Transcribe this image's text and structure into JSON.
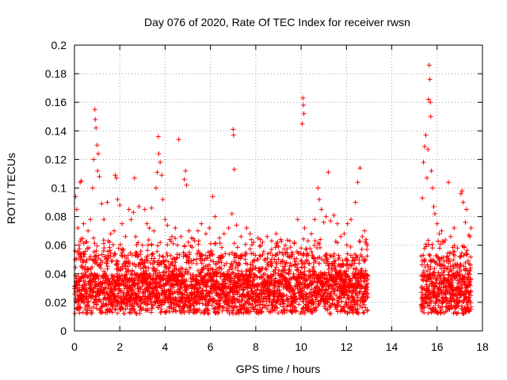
{
  "chart_data": {
    "type": "scatter",
    "title": "Day 076 of 2020, Rate Of TEC Index for receiver rwsn",
    "xlabel": "GPS time / hours",
    "ylabel": "ROTI / TECUs",
    "xlim": [
      0,
      18
    ],
    "ylim": [
      0,
      0.2
    ],
    "xticks": [
      "0",
      "2",
      "4",
      "6",
      "8",
      "10",
      "12",
      "14",
      "16",
      "18"
    ],
    "yticks": [
      "0",
      "0.02",
      "0.04",
      "0.06",
      "0.08",
      "0.1",
      "0.12",
      "0.14",
      "0.16",
      "0.18",
      "0.2"
    ],
    "grid": true,
    "marker": "+",
    "series_color": "#ff0000",
    "points": [
      [
        0.05,
        0.094
      ],
      [
        0.1,
        0.085
      ],
      [
        0.15,
        0.072
      ],
      [
        0.2,
        0.06
      ],
      [
        0.25,
        0.104
      ],
      [
        0.3,
        0.105
      ],
      [
        0.4,
        0.075
      ],
      [
        0.5,
        0.062
      ],
      [
        0.6,
        0.07
      ],
      [
        0.7,
        0.078
      ],
      [
        0.8,
        0.1
      ],
      [
        0.85,
        0.12
      ],
      [
        0.9,
        0.155
      ],
      [
        0.92,
        0.148
      ],
      [
        0.95,
        0.142
      ],
      [
        1.0,
        0.13
      ],
      [
        1.02,
        0.112
      ],
      [
        1.05,
        0.124
      ],
      [
        1.1,
        0.108
      ],
      [
        1.2,
        0.089
      ],
      [
        1.3,
        0.078
      ],
      [
        1.45,
        0.09
      ],
      [
        1.6,
        0.068
      ],
      [
        1.75,
        0.07
      ],
      [
        1.8,
        0.109
      ],
      [
        1.85,
        0.107
      ],
      [
        1.9,
        0.092
      ],
      [
        2.0,
        0.088
      ],
      [
        2.1,
        0.075
      ],
      [
        2.25,
        0.066
      ],
      [
        2.4,
        0.085
      ],
      [
        2.5,
        0.078
      ],
      [
        2.6,
        0.083
      ],
      [
        2.65,
        0.107
      ],
      [
        2.7,
        0.066
      ],
      [
        2.85,
        0.087
      ],
      [
        3.0,
        0.06
      ],
      [
        3.1,
        0.085
      ],
      [
        3.2,
        0.075
      ],
      [
        3.3,
        0.072
      ],
      [
        3.4,
        0.086
      ],
      [
        3.5,
        0.07
      ],
      [
        3.6,
        0.1
      ],
      [
        3.65,
        0.111
      ],
      [
        3.7,
        0.136
      ],
      [
        3.72,
        0.124
      ],
      [
        3.78,
        0.118
      ],
      [
        3.85,
        0.109
      ],
      [
        3.9,
        0.092
      ],
      [
        4.0,
        0.078
      ],
      [
        4.1,
        0.074
      ],
      [
        4.2,
        0.064
      ],
      [
        4.3,
        0.066
      ],
      [
        4.45,
        0.072
      ],
      [
        4.6,
        0.134
      ],
      [
        4.7,
        0.066
      ],
      [
        4.85,
        0.106
      ],
      [
        4.9,
        0.112
      ],
      [
        4.95,
        0.102
      ],
      [
        5.05,
        0.07
      ],
      [
        5.3,
        0.063
      ],
      [
        5.45,
        0.07
      ],
      [
        5.6,
        0.075
      ],
      [
        5.8,
        0.068
      ],
      [
        5.95,
        0.072
      ],
      [
        6.1,
        0.094
      ],
      [
        6.2,
        0.08
      ],
      [
        6.4,
        0.065
      ],
      [
        6.6,
        0.068
      ],
      [
        6.8,
        0.072
      ],
      [
        6.95,
        0.082
      ],
      [
        7.0,
        0.141
      ],
      [
        7.02,
        0.137
      ],
      [
        7.05,
        0.113
      ],
      [
        7.15,
        0.074
      ],
      [
        7.35,
        0.066
      ],
      [
        7.6,
        0.072
      ],
      [
        7.75,
        0.068
      ],
      [
        7.9,
        0.062
      ],
      [
        8.1,
        0.065
      ],
      [
        8.3,
        0.062
      ],
      [
        8.5,
        0.066
      ],
      [
        8.7,
        0.063
      ],
      [
        8.9,
        0.068
      ],
      [
        9.1,
        0.064
      ],
      [
        9.3,
        0.06
      ],
      [
        9.5,
        0.063
      ],
      [
        9.7,
        0.062
      ],
      [
        9.85,
        0.078
      ],
      [
        10.0,
        0.058
      ],
      [
        10.05,
        0.145
      ],
      [
        10.08,
        0.163
      ],
      [
        10.1,
        0.158
      ],
      [
        10.12,
        0.152
      ],
      [
        10.15,
        0.072
      ],
      [
        10.3,
        0.063
      ],
      [
        10.45,
        0.068
      ],
      [
        10.6,
        0.078
      ],
      [
        10.75,
        0.1
      ],
      [
        10.8,
        0.092
      ],
      [
        10.9,
        0.085
      ],
      [
        11.0,
        0.076
      ],
      [
        11.1,
        0.08
      ],
      [
        11.2,
        0.111
      ],
      [
        11.3,
        0.077
      ],
      [
        11.45,
        0.081
      ],
      [
        11.6,
        0.075
      ],
      [
        11.75,
        0.066
      ],
      [
        11.9,
        0.068
      ],
      [
        12.05,
        0.075
      ],
      [
        12.2,
        0.078
      ],
      [
        12.4,
        0.09
      ],
      [
        12.5,
        0.104
      ],
      [
        12.6,
        0.114
      ],
      [
        12.7,
        0.066
      ],
      [
        12.8,
        0.07
      ],
      [
        12.9,
        0.061
      ],
      [
        15.35,
        0.093
      ],
      [
        15.4,
        0.118
      ],
      [
        15.45,
        0.129
      ],
      [
        15.5,
        0.137
      ],
      [
        15.55,
        0.107
      ],
      [
        15.6,
        0.127
      ],
      [
        15.62,
        0.162
      ],
      [
        15.65,
        0.186
      ],
      [
        15.68,
        0.176
      ],
      [
        15.7,
        0.16
      ],
      [
        15.72,
        0.15
      ],
      [
        15.75,
        0.112
      ],
      [
        15.8,
        0.1
      ],
      [
        15.85,
        0.087
      ],
      [
        15.9,
        0.082
      ],
      [
        16.0,
        0.075
      ],
      [
        16.1,
        0.068
      ],
      [
        16.2,
        0.07
      ],
      [
        16.3,
        0.062
      ],
      [
        16.5,
        0.104
      ],
      [
        16.6,
        0.066
      ],
      [
        16.75,
        0.072
      ],
      [
        16.9,
        0.058
      ],
      [
        17.05,
        0.096
      ],
      [
        17.1,
        0.098
      ],
      [
        17.15,
        0.09
      ],
      [
        17.25,
        0.076
      ],
      [
        17.3,
        0.085
      ],
      [
        17.4,
        0.067
      ],
      [
        17.45,
        0.066
      ],
      [
        17.5,
        0.072
      ]
    ],
    "dense_bands": [
      {
        "x_from": 0.0,
        "x_to": 12.95
      },
      {
        "x_from": 15.3,
        "x_to": 17.5
      }
    ]
  }
}
